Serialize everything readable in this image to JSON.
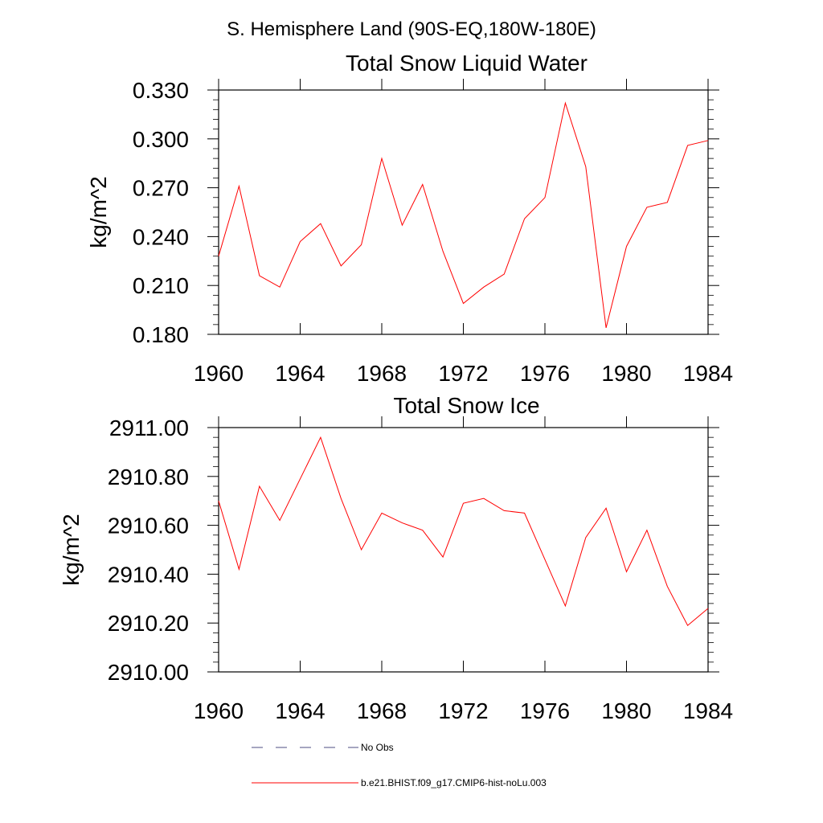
{
  "figure": {
    "title": "S. Hemisphere Land (90S-EQ,180W-180E)"
  },
  "chart_data": [
    {
      "type": "line",
      "title": "Total Snow Liquid Water",
      "xlabel": "",
      "ylabel": "kg/m^2",
      "xlim": [
        1960,
        1984
      ],
      "ylim": [
        0.18,
        0.33
      ],
      "xticks": [
        1960,
        1964,
        1968,
        1972,
        1976,
        1980,
        1984
      ],
      "xtick_labels": [
        "1960",
        "1964",
        "1968",
        "1972",
        "1976",
        "1980",
        "1984"
      ],
      "yticks": [
        0.18,
        0.21,
        0.24,
        0.27,
        0.3,
        0.33
      ],
      "ytick_labels": [
        "0.180",
        "0.210",
        "0.240",
        "0.270",
        "0.300",
        "0.330"
      ],
      "grid": false,
      "x": [
        1960,
        1961,
        1962,
        1963,
        1964,
        1965,
        1966,
        1967,
        1968,
        1969,
        1970,
        1971,
        1972,
        1973,
        1974,
        1975,
        1976,
        1977,
        1978,
        1979,
        1980,
        1981,
        1982,
        1983,
        1984
      ],
      "series": [
        {
          "name": "b.e21.BHIST.f09_g17.CMIP6-hist-noLu.003",
          "color": "#ff0000",
          "values": [
            0.228,
            0.271,
            0.216,
            0.209,
            0.237,
            0.248,
            0.222,
            0.235,
            0.288,
            0.247,
            0.272,
            0.231,
            0.199,
            0.209,
            0.217,
            0.251,
            0.264,
            0.322,
            0.283,
            0.184,
            0.234,
            0.258,
            0.261,
            0.296,
            0.299
          ]
        }
      ]
    },
    {
      "type": "line",
      "title": "Total Snow Ice",
      "xlabel": "",
      "ylabel": "kg/m^2",
      "xlim": [
        1960,
        1984
      ],
      "ylim": [
        2910.0,
        2911.0
      ],
      "xticks": [
        1960,
        1964,
        1968,
        1972,
        1976,
        1980,
        1984
      ],
      "xtick_labels": [
        "1960",
        "1964",
        "1968",
        "1972",
        "1976",
        "1980",
        "1984"
      ],
      "yticks": [
        2910.0,
        2910.2,
        2910.4,
        2910.6,
        2910.8,
        2911.0
      ],
      "ytick_labels": [
        "2910.00",
        "2910.20",
        "2910.40",
        "2910.60",
        "2910.80",
        "2911.00"
      ],
      "grid": false,
      "x": [
        1960,
        1961,
        1962,
        1963,
        1964,
        1965,
        1966,
        1967,
        1968,
        1969,
        1970,
        1971,
        1972,
        1973,
        1974,
        1975,
        1976,
        1977,
        1978,
        1979,
        1980,
        1981,
        1982,
        1983,
        1984
      ],
      "series": [
        {
          "name": "b.e21.BHIST.f09_g17.CMIP6-hist-noLu.003",
          "color": "#ff0000",
          "values": [
            2910.7,
            2910.42,
            2910.76,
            2910.62,
            2910.79,
            2910.96,
            2910.71,
            2910.5,
            2910.65,
            2910.61,
            2910.58,
            2910.47,
            2910.69,
            2910.71,
            2910.66,
            2910.65,
            2910.46,
            2910.27,
            2910.55,
            2910.67,
            2910.41,
            2910.58,
            2910.35,
            2910.19,
            2910.26
          ]
        }
      ]
    }
  ],
  "legend": {
    "placement": "bottom",
    "entries": [
      {
        "label": "No Obs",
        "color": "#4d4d80",
        "dash": "dashed"
      },
      {
        "label": "b.e21.BHIST.f09_g17.CMIP6-hist-noLu.003",
        "color": "#ff0000",
        "dash": "solid"
      }
    ]
  }
}
